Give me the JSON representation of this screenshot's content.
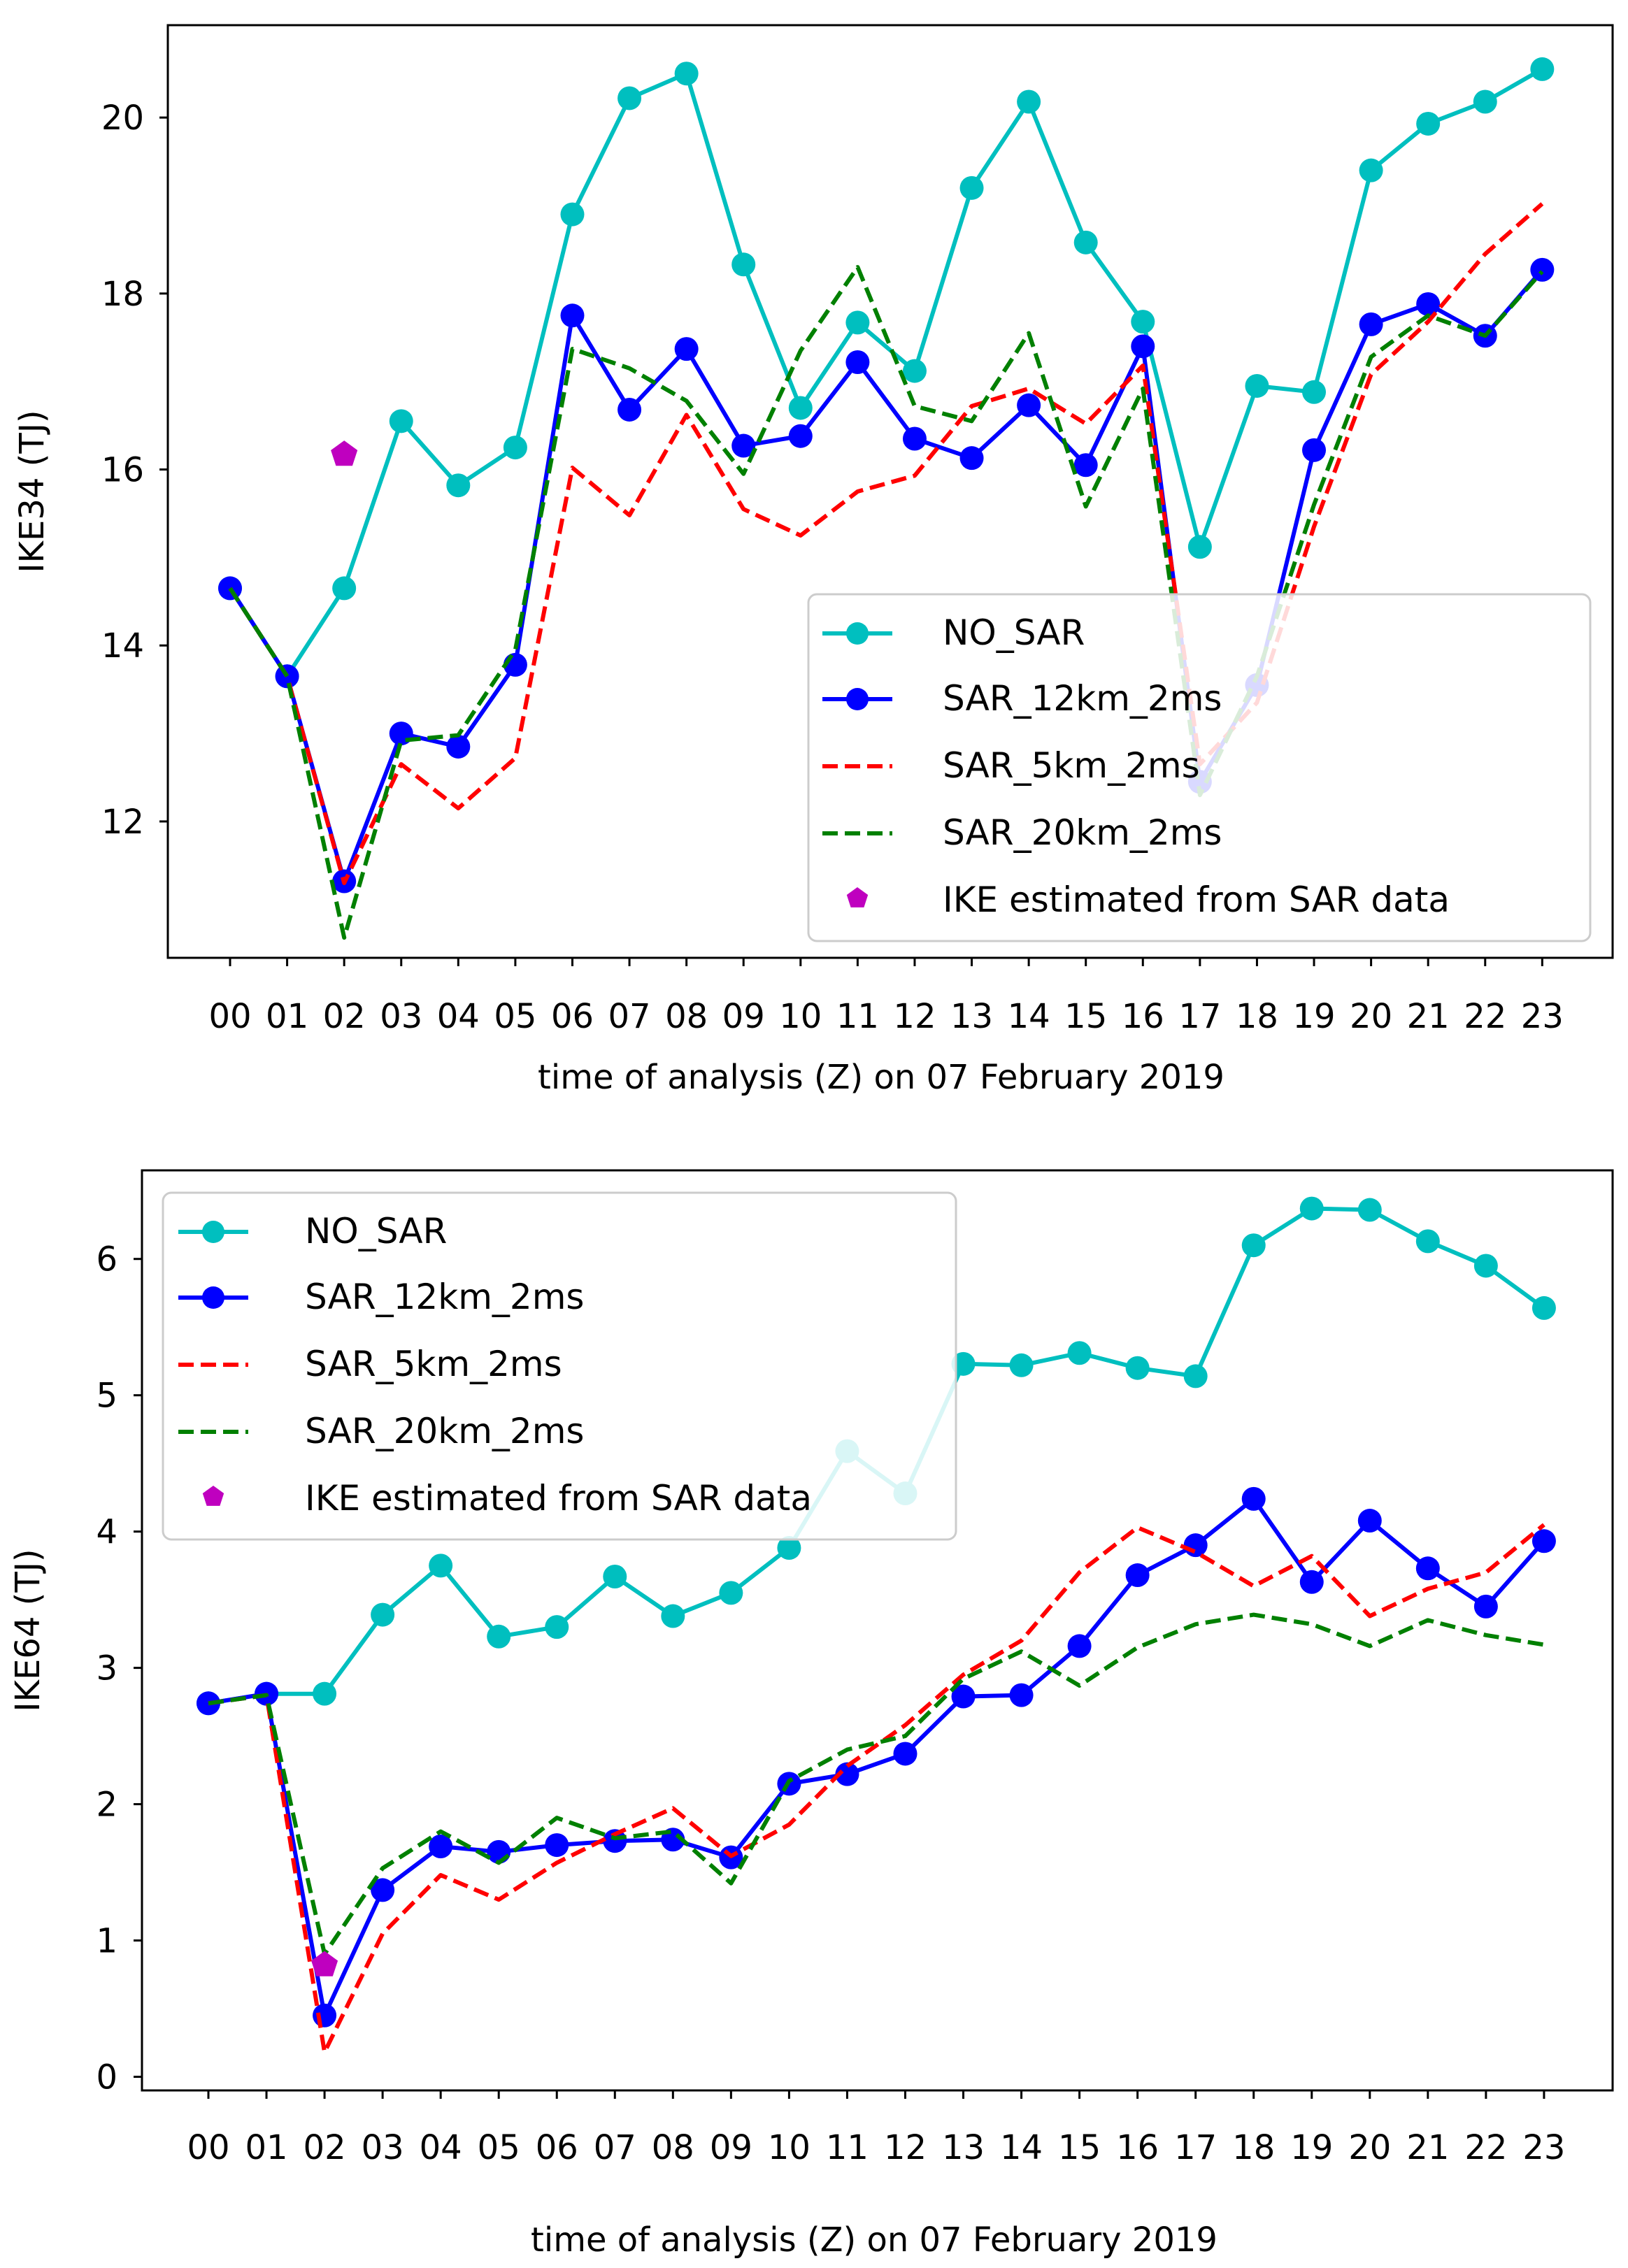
{
  "chart_data": [
    {
      "type": "line",
      "categories": [
        "00",
        "01",
        "02",
        "03",
        "04",
        "05",
        "06",
        "07",
        "08",
        "09",
        "10",
        "11",
        "12",
        "13",
        "14",
        "15",
        "16",
        "17",
        "18",
        "19",
        "20",
        "21",
        "22",
        "23"
      ],
      "xlabel": "time of analysis (Z) on 07 February 2019",
      "ylabel": "IKE34 (TJ)",
      "ylim": [
        10.45,
        21.05
      ],
      "yticks": [
        12,
        14,
        16,
        18,
        20
      ],
      "legend_position": "lower-right",
      "series": [
        {
          "name": "NO_SAR",
          "color": "#00bfbf",
          "style": "line-marker",
          "values": [
            14.65,
            13.65,
            14.65,
            16.55,
            15.82,
            16.25,
            18.9,
            20.22,
            20.5,
            18.33,
            16.7,
            17.67,
            17.12,
            19.2,
            20.18,
            18.58,
            17.68,
            15.12,
            16.95,
            16.88,
            19.4,
            19.93,
            20.18,
            20.55
          ]
        },
        {
          "name": "SAR_12km_2ms",
          "color": "#0000ff",
          "style": "line-marker",
          "values": [
            14.65,
            13.65,
            11.32,
            13.0,
            12.85,
            13.78,
            17.75,
            16.68,
            17.37,
            16.27,
            16.38,
            17.22,
            16.35,
            16.13,
            16.73,
            16.05,
            17.4,
            12.45,
            13.55,
            16.22,
            17.65,
            17.88,
            17.52,
            18.27
          ]
        },
        {
          "name": "SAR_5km_2ms",
          "color": "#ff0000",
          "style": "dashed",
          "values": [
            14.65,
            13.65,
            11.3,
            12.65,
            12.15,
            12.72,
            16.02,
            15.48,
            16.62,
            15.55,
            15.25,
            15.75,
            15.93,
            16.72,
            16.92,
            16.52,
            17.18,
            12.65,
            13.35,
            15.35,
            17.08,
            17.68,
            18.45,
            19.02
          ]
        },
        {
          "name": "SAR_20km_2ms",
          "color": "#008000",
          "style": "dashed",
          "values": [
            14.65,
            13.65,
            10.68,
            12.92,
            12.98,
            13.95,
            17.37,
            17.15,
            16.78,
            15.95,
            17.35,
            18.3,
            16.72,
            16.55,
            17.55,
            15.58,
            16.92,
            12.3,
            13.65,
            15.6,
            17.28,
            17.75,
            17.52,
            18.25
          ]
        }
      ],
      "sar_estimate": {
        "name": "IKE estimated from SAR data",
        "color": "#bf00bf",
        "x": "02",
        "y": 16.17
      }
    },
    {
      "type": "line",
      "categories": [
        "00",
        "01",
        "02",
        "03",
        "04",
        "05",
        "06",
        "07",
        "08",
        "09",
        "10",
        "11",
        "12",
        "13",
        "14",
        "15",
        "16",
        "17",
        "18",
        "19",
        "20",
        "21",
        "22",
        "23"
      ],
      "xlabel": "time of analysis (Z) on 07 February 2019",
      "ylabel": "IKE64 (TJ)",
      "ylim": [
        -0.1,
        6.65
      ],
      "yticks": [
        0,
        1,
        2,
        3,
        4,
        5,
        6
      ],
      "legend_position": "upper-left",
      "series": [
        {
          "name": "NO_SAR",
          "color": "#00bfbf",
          "style": "line-marker",
          "values": [
            2.74,
            2.81,
            2.81,
            3.39,
            3.75,
            3.23,
            3.3,
            3.67,
            3.38,
            3.55,
            3.88,
            4.59,
            4.28,
            5.23,
            5.22,
            5.31,
            5.2,
            5.14,
            6.1,
            6.37,
            6.36,
            6.13,
            5.95,
            5.64
          ]
        },
        {
          "name": "SAR_12km_2ms",
          "color": "#0000ff",
          "style": "line-marker",
          "values": [
            2.74,
            2.81,
            0.45,
            1.37,
            1.69,
            1.65,
            1.7,
            1.73,
            1.74,
            1.61,
            2.15,
            2.22,
            2.37,
            2.79,
            2.8,
            3.16,
            3.68,
            3.9,
            4.24,
            3.63,
            4.08,
            3.73,
            3.45,
            3.93
          ]
        },
        {
          "name": "SAR_5km_2ms",
          "color": "#ff0000",
          "style": "dashed",
          "values": [
            2.74,
            2.8,
            0.18,
            1.05,
            1.48,
            1.3,
            1.57,
            1.78,
            1.97,
            1.62,
            1.85,
            2.28,
            2.58,
            2.95,
            3.2,
            3.7,
            4.03,
            3.85,
            3.6,
            3.82,
            3.38,
            3.58,
            3.7,
            4.05
          ]
        },
        {
          "name": "SAR_20km_2ms",
          "color": "#008000",
          "style": "dashed",
          "values": [
            2.74,
            2.8,
            0.9,
            1.53,
            1.8,
            1.57,
            1.9,
            1.75,
            1.8,
            1.42,
            2.17,
            2.4,
            2.5,
            2.92,
            3.12,
            2.87,
            3.15,
            3.32,
            3.39,
            3.32,
            3.16,
            3.35,
            3.24,
            3.17
          ]
        }
      ],
      "sar_estimate": {
        "name": "IKE estimated from SAR data",
        "color": "#bf00bf",
        "x": "02",
        "y": 0.82
      }
    }
  ]
}
